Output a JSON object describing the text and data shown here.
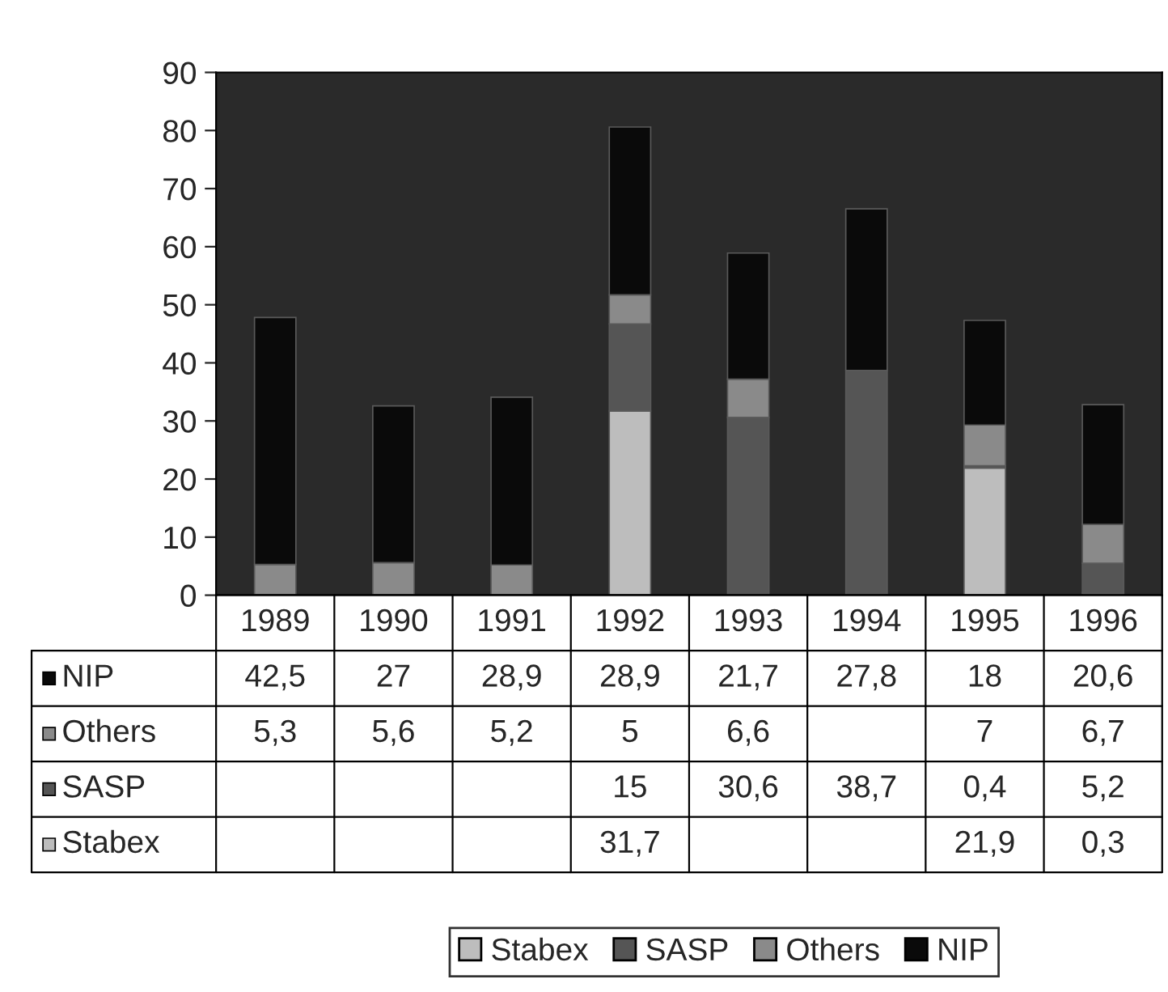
{
  "chart_data": {
    "type": "bar",
    "stacked": true,
    "categories": [
      "1989",
      "1990",
      "1991",
      "1992",
      "1993",
      "1994",
      "1995",
      "1996"
    ],
    "series": [
      {
        "name": "Stabex",
        "color": "#bdbdbd",
        "values": [
          null,
          null,
          null,
          31.7,
          null,
          null,
          21.9,
          0.3
        ],
        "value_labels": [
          null,
          null,
          null,
          "31,7",
          null,
          null,
          "21,9",
          "0,3"
        ]
      },
      {
        "name": "SASP",
        "color": "#555555",
        "values": [
          null,
          null,
          null,
          15,
          30.6,
          38.7,
          0.4,
          5.2
        ],
        "value_labels": [
          null,
          null,
          null,
          "15",
          "30,6",
          "38,7",
          "0,4",
          "5,2"
        ]
      },
      {
        "name": "Others",
        "color": "#8a8a8a",
        "values": [
          5.3,
          5.6,
          5.2,
          5,
          6.6,
          null,
          7,
          6.7
        ],
        "value_labels": [
          "5,3",
          "5,6",
          "5,2",
          "5",
          "6,6",
          null,
          "7",
          "6,7"
        ]
      },
      {
        "name": "NIP",
        "color": "#0a0a0a",
        "values": [
          42.5,
          27,
          28.9,
          28.9,
          21.7,
          27.8,
          18,
          20.6
        ],
        "value_labels": [
          "42,5",
          "27",
          "28,9",
          "28,9",
          "21,7",
          "27,8",
          "18",
          "20,6"
        ]
      }
    ],
    "ylim": [
      0,
      90
    ],
    "yticks": [
      0,
      10,
      20,
      30,
      40,
      50,
      60,
      70,
      80,
      90
    ],
    "grid": false,
    "legend": "bottom",
    "tick_labels": "y"
  }
}
